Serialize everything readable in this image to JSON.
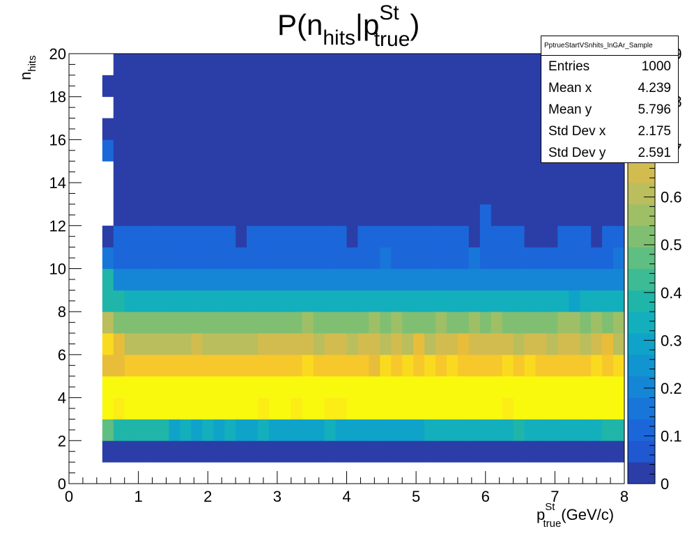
{
  "chart_data": {
    "type": "heatmap",
    "title": {
      "main": "P(n",
      "sub1": "hits",
      "mid": "|p",
      "sup": "St",
      "sub2": "true",
      "end": ")"
    },
    "xlabel": {
      "p": "p",
      "sup": "St",
      "sub": "true",
      "unit": "(GeV/c)"
    },
    "ylabel": {
      "n": "n",
      "sub": "hits"
    },
    "xlim": [
      0,
      8
    ],
    "ylim": [
      0,
      20
    ],
    "x_ticks": [
      "0",
      "1",
      "2",
      "3",
      "4",
      "5",
      "6",
      "7",
      "8"
    ],
    "y_ticks": [
      "0",
      "2",
      "4",
      "6",
      "8",
      "10",
      "12",
      "14",
      "16",
      "18",
      "20"
    ],
    "z_ticks": [
      "0",
      "0.1",
      "0.2",
      "0.3",
      "0.4",
      "0.5",
      "0.6",
      "0.7",
      "0.8",
      "0.9"
    ],
    "zlim": [
      0,
      0.9
    ],
    "x_bin_width": 0.16,
    "y_bin_width": 1,
    "first_column_x": 0.48,
    "column_count": 47,
    "palette": [
      "#2b3ea8",
      "#1f58d0",
      "#1b67da",
      "#1876d8",
      "#1585d5",
      "#1195d1",
      "#0fa3c9",
      "#13afbc",
      "#20b5a9",
      "#3cbb94",
      "#5fbe82",
      "#80bf72",
      "#9fbf66",
      "#babe5c",
      "#d2bc4f",
      "#e8bd3a",
      "#f7c82b",
      "#fada1f",
      "#fbed15",
      "#f9f90e"
    ],
    "rows": [
      {
        "y": 1,
        "profile": [
          0.0,
          0.02
        ]
      },
      {
        "y": 2,
        "profile": [
          0.45,
          0.4,
          0.4,
          0.4,
          0.4,
          0.4,
          0.3,
          0.35,
          0.3,
          0.35,
          0.3,
          0.32,
          0.3,
          0.3,
          0.32,
          0.3,
          0.3,
          0.3,
          0.3,
          0.3,
          0.32,
          0.3,
          0.3,
          0.3,
          0.3,
          0.3,
          0.3,
          0.3,
          0.3,
          0.35,
          0.32,
          0.35,
          0.35,
          0.32,
          0.35,
          0.35,
          0.35,
          0.4,
          0.35,
          0.35,
          0.35,
          0.35,
          0.35,
          0.35,
          0.35,
          0.38,
          0.38
        ]
      },
      {
        "y": 3,
        "profile": [
          0.9,
          0.85,
          0.9,
          0.9,
          0.9,
          0.9,
          0.9,
          0.9,
          0.9,
          0.9,
          0.9,
          0.9,
          0.9,
          0.9,
          0.85,
          0.9,
          0.9,
          0.85,
          0.9,
          0.9,
          0.85,
          0.85,
          0.9,
          0.9,
          0.9,
          0.9,
          0.9,
          0.9,
          0.9,
          0.9,
          0.9,
          0.9,
          0.9,
          0.9,
          0.9,
          0.9,
          0.85,
          0.9,
          0.87,
          0.87,
          0.9,
          0.87,
          0.87,
          0.9,
          0.9,
          0.9,
          0.9
        ]
      },
      {
        "y": 4,
        "profile": [
          0.9
        ]
      },
      {
        "y": 5,
        "profile": [
          0.7,
          0.7,
          0.75,
          0.75,
          0.75,
          0.75,
          0.75,
          0.75,
          0.75,
          0.75,
          0.75,
          0.75,
          0.75,
          0.75,
          0.75,
          0.75,
          0.75,
          0.75,
          0.8,
          0.75,
          0.75,
          0.75,
          0.75,
          0.75,
          0.7,
          0.8,
          0.75,
          0.8,
          0.75,
          0.8,
          0.75,
          0.8,
          0.75,
          0.75,
          0.75,
          0.75,
          0.8,
          0.75,
          0.8,
          0.75,
          0.75,
          0.75,
          0.75,
          0.75,
          0.8,
          0.75,
          0.8
        ]
      },
      {
        "y": 6,
        "profile": [
          0.78,
          0.68,
          0.62,
          0.62,
          0.62,
          0.62,
          0.62,
          0.62,
          0.66,
          0.62,
          0.62,
          0.62,
          0.62,
          0.62,
          0.66,
          0.66,
          0.66,
          0.66,
          0.66,
          0.62,
          0.66,
          0.66,
          0.62,
          0.66,
          0.66,
          0.62,
          0.66,
          0.62,
          0.7,
          0.62,
          0.66,
          0.66,
          0.7,
          0.66,
          0.66,
          0.66,
          0.66,
          0.62,
          0.66,
          0.66,
          0.62,
          0.66,
          0.66,
          0.62,
          0.66,
          0.7,
          0.62
        ]
      },
      {
        "y": 7,
        "profile": [
          0.62,
          0.5,
          0.5,
          0.5,
          0.5,
          0.5,
          0.5,
          0.5,
          0.5,
          0.5,
          0.5,
          0.5,
          0.5,
          0.5,
          0.5,
          0.5,
          0.5,
          0.5,
          0.55,
          0.5,
          0.5,
          0.5,
          0.5,
          0.5,
          0.55,
          0.5,
          0.55,
          0.5,
          0.5,
          0.5,
          0.55,
          0.5,
          0.5,
          0.55,
          0.5,
          0.55,
          0.5,
          0.5,
          0.5,
          0.5,
          0.5,
          0.55,
          0.55,
          0.5,
          0.55,
          0.5,
          0.55
        ]
      },
      {
        "y": 8,
        "profile": [
          0.4,
          0.4,
          0.32,
          0.35,
          0.35,
          0.35,
          0.35,
          0.35,
          0.35,
          0.35,
          0.35,
          0.35,
          0.35,
          0.35,
          0.35,
          0.35,
          0.35,
          0.35,
          0.35,
          0.35,
          0.35,
          0.35,
          0.35,
          0.35,
          0.35,
          0.35,
          0.35,
          0.35,
          0.35,
          0.35,
          0.35,
          0.35,
          0.35,
          0.35,
          0.35,
          0.35,
          0.35,
          0.35,
          0.35,
          0.35,
          0.35,
          0.35,
          0.3,
          0.35,
          0.35,
          0.35,
          0.35
        ]
      },
      {
        "y": 9,
        "profile": [
          0.4,
          0.22
        ]
      },
      {
        "y": 10,
        "profile": [
          0.18,
          0.12,
          0.12,
          0.12,
          0.12,
          0.12,
          0.12,
          0.12,
          0.12,
          0.12,
          0.12,
          0.12,
          0.12,
          0.12,
          0.12,
          0.12,
          0.12,
          0.12,
          0.12,
          0.12,
          0.12,
          0.12,
          0.12,
          0.12,
          0.12,
          0.18,
          0.12,
          0.12,
          0.12,
          0.12,
          0.12,
          0.12,
          0.12,
          0.18,
          0.12,
          0.12,
          0.12,
          0.12,
          0.12,
          0.12,
          0.12,
          0.12,
          0.12,
          0.12,
          0.12,
          0.12,
          0.18
        ]
      },
      {
        "y": 11,
        "profile": [
          0.0,
          0.1,
          0.1,
          0.1,
          0.1,
          0.1,
          0.1,
          0.1,
          0.1,
          0.1,
          0.1,
          0.1,
          0.0,
          0.1,
          0.1,
          0.1,
          0.1,
          0.1,
          0.1,
          0.1,
          0.1,
          0.1,
          0.0,
          0.1,
          0.1,
          0.1,
          0.1,
          0.1,
          0.1,
          0.1,
          0.1,
          0.1,
          0.1,
          0.0,
          0.1,
          0.1,
          0.1,
          0.1,
          0.0,
          0.0,
          0.0,
          0.1,
          0.1,
          0.1,
          0.0,
          0.1,
          0.1
        ]
      },
      {
        "y": 12,
        "profile": [
          -1,
          0.0,
          0.0,
          0.0,
          0.0,
          0.0,
          0.0,
          0.0,
          0.0,
          0.0,
          0.0,
          0.0,
          0.0,
          0.0,
          0.0,
          0.0,
          0.0,
          0.0,
          0.0,
          0.0,
          0.0,
          0.0,
          0.0,
          0.0,
          0.0,
          0.0,
          0.0,
          0.0,
          0.0,
          0.0,
          0.0,
          0.0,
          0.0,
          0.0,
          0.1,
          0.0,
          0.0,
          0.0,
          0.0,
          0.0,
          0.0,
          0.0,
          0.0,
          0.0,
          0.0,
          0.0,
          0.0
        ]
      },
      {
        "y": 13,
        "profile": [
          -1,
          0.0
        ]
      },
      {
        "y": 14,
        "profile": [
          -1,
          0.0
        ]
      },
      {
        "y": 15,
        "profile": [
          0.1,
          0.0
        ]
      },
      {
        "y": 16,
        "profile": [
          0.0,
          0.0
        ]
      },
      {
        "y": 17,
        "profile": [
          -1,
          0.0
        ]
      },
      {
        "y": 18,
        "profile": [
          0.0,
          0.0
        ]
      },
      {
        "y": 19,
        "profile": [
          -1,
          0.0
        ]
      }
    ]
  },
  "stats": {
    "name": "PptrueStartVSnhits_lnGAr_Sample",
    "rows": [
      {
        "label": "Entries",
        "value": "1000"
      },
      {
        "label": "Mean x",
        "value": "4.239"
      },
      {
        "label": "Mean y",
        "value": "5.796"
      },
      {
        "label": "Std Dev x",
        "value": "2.175"
      },
      {
        "label": "Std Dev y",
        "value": "2.591"
      }
    ]
  }
}
